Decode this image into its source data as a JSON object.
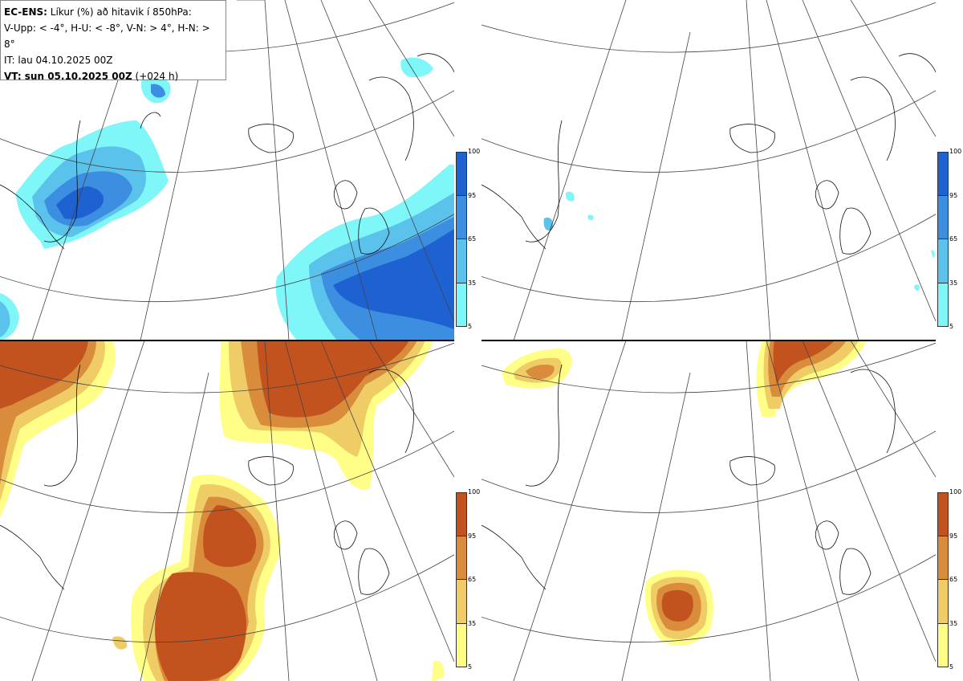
{
  "header": {
    "model": "EC-ENS:",
    "title": "Líkur (%) að hitavik í 850hPa:",
    "thresholds": "V-Upp: < -4°, H-U: < -8°, V-N: > 4°, H-N: > 8°",
    "init_time": "IT: lau 04.10.2025 00Z",
    "valid_label": "VT: sun 05.10.2025 00Z",
    "lead": "(+024 h)"
  },
  "colorbar": {
    "ticks": [
      "100",
      "95",
      "65",
      "35",
      "5"
    ],
    "cold_colors": [
      "#1e62d2",
      "#3c8ee0",
      "#5bc2ec",
      "#7ff6f8"
    ],
    "warm_colors": [
      "#c2531e",
      "#d98c3c",
      "#f0cc66",
      "#ffff88"
    ]
  },
  "panels": [
    {
      "id": "V-Upp",
      "scheme": "cold"
    },
    {
      "id": "H-U",
      "scheme": "cold"
    },
    {
      "id": "V-N",
      "scheme": "warm"
    },
    {
      "id": "H-N",
      "scheme": "warm"
    }
  ]
}
